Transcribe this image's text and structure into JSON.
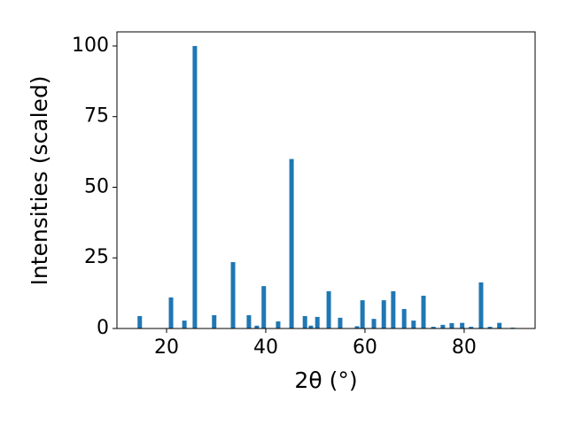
{
  "chart_data": {
    "type": "bar",
    "xlabel": "2θ (°)",
    "ylabel": "Intensities (scaled)",
    "x": [
      14.6,
      20.9,
      23.6,
      25.7,
      29.6,
      33.4,
      36.6,
      38.2,
      39.6,
      42.5,
      45.2,
      47.9,
      49.1,
      50.4,
      52.7,
      55.0,
      58.4,
      59.5,
      61.8,
      63.8,
      65.7,
      67.9,
      69.8,
      71.8,
      73.8,
      75.7,
      77.5,
      79.6,
      81.4,
      83.4,
      85.2,
      87.1,
      89.8
    ],
    "values": [
      4.4,
      11,
      2.8,
      100,
      4.7,
      23.5,
      4.7,
      1,
      15,
      2.5,
      60,
      4.4,
      1,
      4.1,
      13.2,
      3.8,
      0.8,
      10,
      3.4,
      10,
      13.2,
      6.9,
      2.8,
      11.6,
      0.6,
      1.3,
      1.9,
      2,
      0.6,
      16.3,
      0.6,
      2,
      0.3
    ],
    "color": "#1f77b4",
    "xlim": [
      10,
      94.3
    ],
    "xticks": [
      20,
      40,
      60,
      80
    ],
    "ylim": [
      0,
      105
    ],
    "yticks": [
      0,
      25,
      50,
      75,
      100
    ],
    "grid": false
  }
}
